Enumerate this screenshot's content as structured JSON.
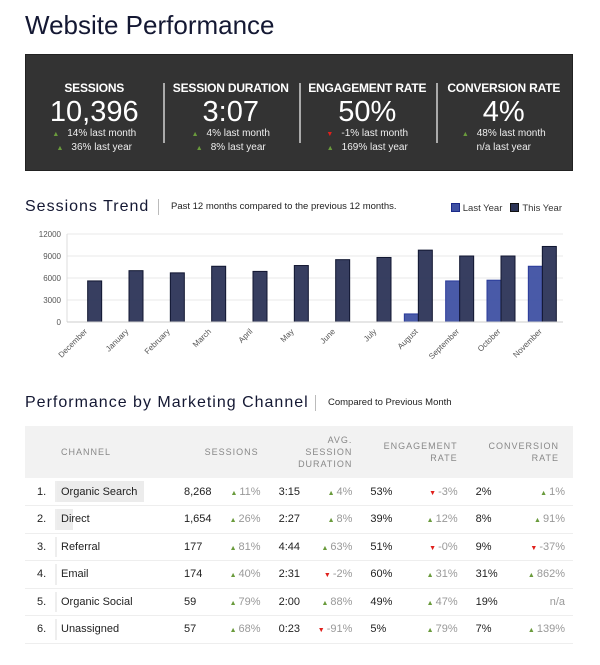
{
  "title": "Website Performance",
  "kpis": [
    {
      "label": "SESSIONS",
      "value": "10,396",
      "month": {
        "dir": "up",
        "text": "14% last month"
      },
      "year": {
        "dir": "up",
        "text": "36% last year"
      }
    },
    {
      "label": "SESSION DURATION",
      "value": "3:07",
      "month": {
        "dir": "up",
        "text": "4% last month"
      },
      "year": {
        "dir": "up",
        "text": "8% last year"
      }
    },
    {
      "label": "ENGAGEMENT RATE",
      "value": "50%",
      "month": {
        "dir": "down",
        "text": "-1% last month"
      },
      "year": {
        "dir": "up",
        "text": "169% last year"
      }
    },
    {
      "label": "CONVERSION RATE",
      "value": "4%",
      "month": {
        "dir": "up",
        "text": "48% last month"
      },
      "year": {
        "dir": "none",
        "text": "n/a last year"
      }
    }
  ],
  "trend": {
    "title": "Sessions Trend",
    "subtitle": "Past 12 months compared to the previous 12 months."
  },
  "chart_data": {
    "type": "bar",
    "categories": [
      "December",
      "January",
      "February",
      "March",
      "April",
      "May",
      "June",
      "July",
      "August",
      "September",
      "October",
      "November"
    ],
    "series": [
      {
        "name": "Last Year",
        "color": "#3f51a3",
        "values": [
          0,
          0,
          0,
          0,
          0,
          0,
          0,
          0,
          1100,
          5600,
          5700,
          7600
        ]
      },
      {
        "name": "This Year",
        "color": "#2c3457",
        "values": [
          5600,
          7000,
          6700,
          7600,
          6900,
          7700,
          8500,
          8800,
          9800,
          9000,
          9000,
          10300
        ]
      }
    ],
    "yticks": [
      0,
      3000,
      6000,
      9000,
      12000
    ],
    "ylim": [
      0,
      12000
    ],
    "grid": true,
    "legend": "top-right"
  },
  "channels": {
    "title": "Performance by Marketing Channel",
    "subtitle": "Compared to Previous Month",
    "headers": {
      "channel": "CHANNEL",
      "sessions": "SESSIONS",
      "duration": [
        "AVG.",
        "SESSION",
        "DURATION"
      ],
      "engagement": [
        "ENGAGEMENT",
        "RATE"
      ],
      "conversion": [
        "CONVERSION",
        "RATE"
      ]
    },
    "rows": [
      {
        "rank": "1.",
        "channel": "Organic Search",
        "share": 1.0,
        "sessions": "8,268",
        "sd": "up",
        "sessions_delta": "11%",
        "duration": "3:15",
        "dd": "up",
        "duration_delta": "4%",
        "engagement": "53%",
        "ed": "down",
        "engagement_delta": "-3%",
        "conversion": "2%",
        "cd": "up",
        "conversion_delta": "1%"
      },
      {
        "rank": "2.",
        "channel": "Direct",
        "share": 0.2,
        "sessions": "1,654",
        "sd": "up",
        "sessions_delta": "26%",
        "duration": "2:27",
        "dd": "up",
        "duration_delta": "8%",
        "engagement": "39%",
        "ed": "up",
        "engagement_delta": "12%",
        "conversion": "8%",
        "cd": "up",
        "conversion_delta": "91%"
      },
      {
        "rank": "3.",
        "channel": "Referral",
        "share": 0.02,
        "sessions": "177",
        "sd": "up",
        "sessions_delta": "81%",
        "duration": "4:44",
        "dd": "up",
        "duration_delta": "63%",
        "engagement": "51%",
        "ed": "down",
        "engagement_delta": "-0%",
        "conversion": "9%",
        "cd": "down",
        "conversion_delta": "-37%"
      },
      {
        "rank": "4.",
        "channel": "Email",
        "share": 0.02,
        "sessions": "174",
        "sd": "up",
        "sessions_delta": "40%",
        "duration": "2:31",
        "dd": "down",
        "duration_delta": "-2%",
        "engagement": "60%",
        "ed": "up",
        "engagement_delta": "31%",
        "conversion": "31%",
        "cd": "up",
        "conversion_delta": "862%"
      },
      {
        "rank": "5.",
        "channel": "Organic Social",
        "share": 0.01,
        "sessions": "59",
        "sd": "up",
        "sessions_delta": "79%",
        "duration": "2:00",
        "dd": "up",
        "duration_delta": "88%",
        "engagement": "49%",
        "ed": "up",
        "engagement_delta": "47%",
        "conversion": "19%",
        "cd": "none",
        "conversion_delta": "n/a"
      },
      {
        "rank": "6.",
        "channel": "Unassigned",
        "share": 0.01,
        "sessions": "57",
        "sd": "up",
        "sessions_delta": "68%",
        "duration": "0:23",
        "dd": "down",
        "duration_delta": "-91%",
        "engagement": "5%",
        "ed": "up",
        "engagement_delta": "79%",
        "conversion": "7%",
        "cd": "up",
        "conversion_delta": "139%"
      }
    ]
  }
}
